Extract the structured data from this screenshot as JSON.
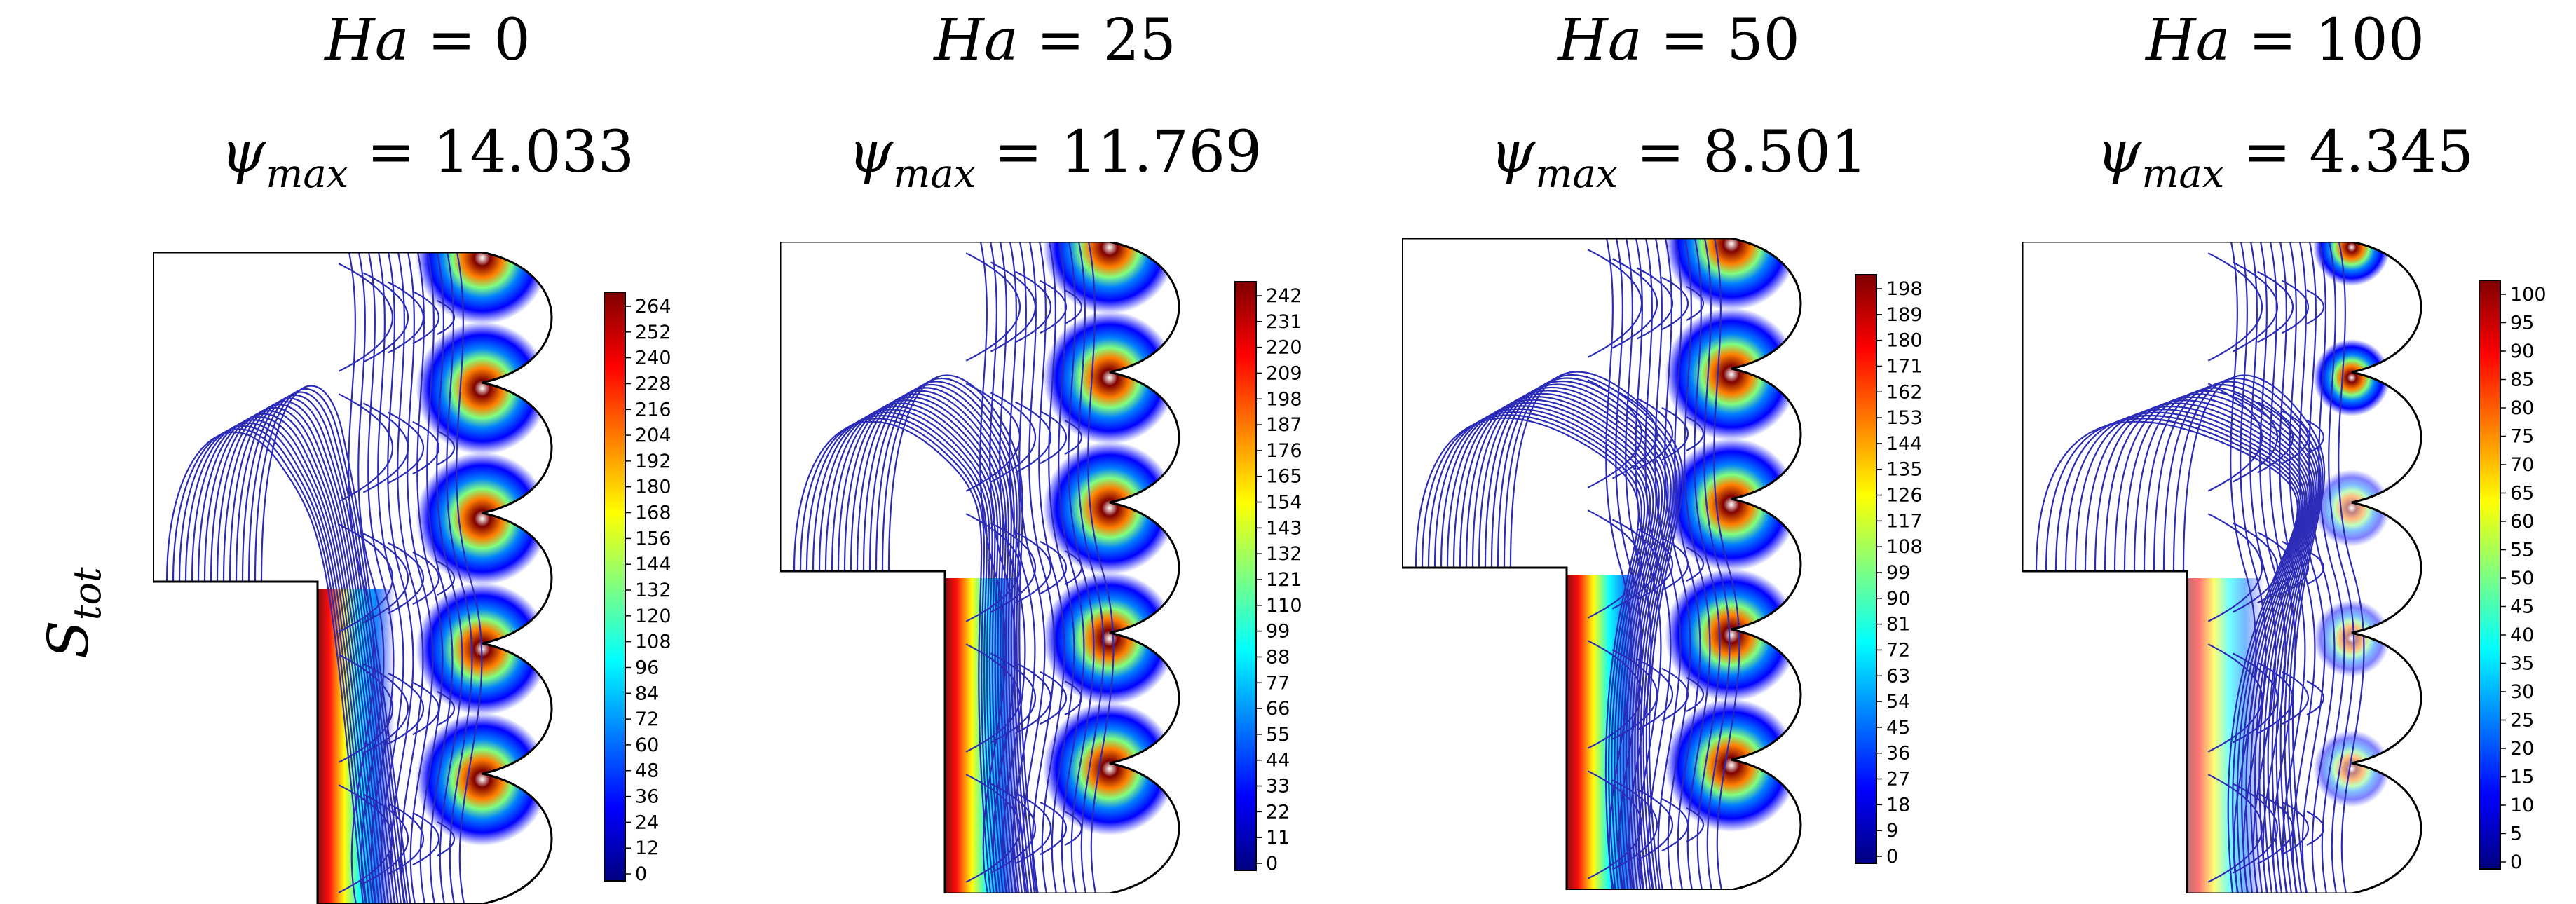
{
  "row_label": {
    "symbol": "S",
    "subscript": "tot"
  },
  "panels": [
    {
      "ha_symbol": "Ha",
      "ha_value": "= 0",
      "psi_symbol": "ψ",
      "psi_sub": "max",
      "psi_value": "= 14.033",
      "colorbar_ticks": [
        "264",
        "252",
        "240",
        "228",
        "216",
        "204",
        "192",
        "180",
        "168",
        "156",
        "144",
        "132",
        "120",
        "108",
        "96",
        "84",
        "72",
        "60",
        "48",
        "36",
        "24",
        "12",
        "0"
      ]
    },
    {
      "ha_symbol": "Ha",
      "ha_value": "= 25",
      "psi_symbol": "ψ",
      "psi_sub": "max",
      "psi_value": "= 11.769",
      "colorbar_ticks": [
        "242",
        "231",
        "220",
        "209",
        "198",
        "187",
        "176",
        "165",
        "154",
        "143",
        "132",
        "121",
        "110",
        "99",
        "88",
        "77",
        "66",
        "55",
        "44",
        "33",
        "22",
        "11",
        "0"
      ]
    },
    {
      "ha_symbol": "Ha",
      "ha_value": "= 50",
      "psi_symbol": "ψ",
      "psi_sub": "max",
      "psi_value": "= 8.501",
      "colorbar_ticks": [
        "198",
        "189",
        "180",
        "171",
        "162",
        "153",
        "144",
        "135",
        "126",
        "117",
        "108",
        "99",
        "90",
        "81",
        "72",
        "63",
        "54",
        "45",
        "36",
        "27",
        "18",
        "9",
        "0"
      ]
    },
    {
      "ha_symbol": "Ha",
      "ha_value": "= 100",
      "psi_symbol": "ψ",
      "psi_sub": "max",
      "psi_value": "= 4.345",
      "colorbar_ticks": [
        "100",
        "95",
        "90",
        "85",
        "80",
        "75",
        "70",
        "65",
        "60",
        "55",
        "50",
        "45",
        "40",
        "35",
        "30",
        "25",
        "20",
        "15",
        "10",
        "5",
        "0"
      ]
    }
  ],
  "colors": {
    "contour": "#2b2bb8",
    "outline": "#000000",
    "jet": [
      "#00007f",
      "#0000ff",
      "#007fff",
      "#00ffff",
      "#7fff7f",
      "#ffff00",
      "#ff7f00",
      "#ff0000",
      "#7f0000"
    ]
  }
}
